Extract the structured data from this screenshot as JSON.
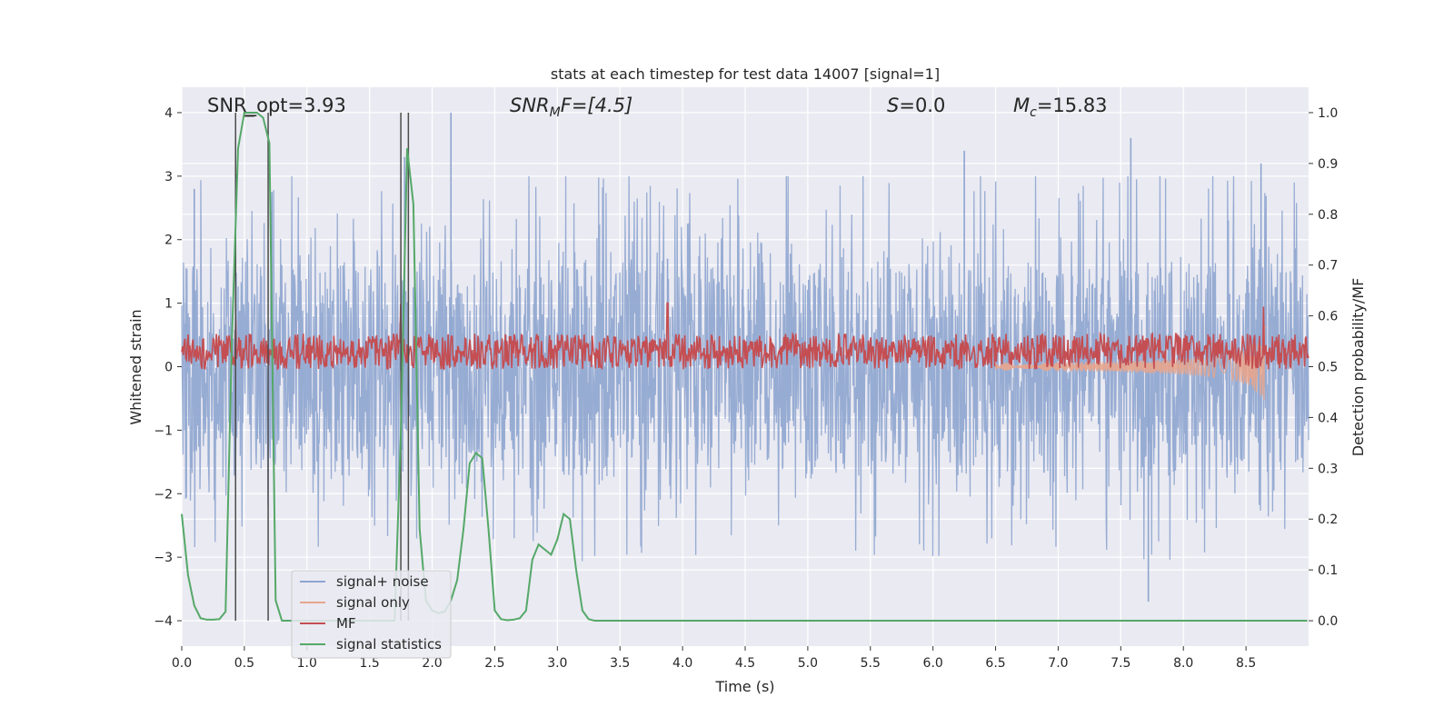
{
  "chart_data": {
    "type": "line",
    "title": "stats at each timestep for test data 14007 [signal=1]",
    "xlabel": "Time (s)",
    "ylabel_left": "Whitened strain",
    "ylabel_right": "Detection probability/MF",
    "xlim": [
      0.0,
      9.0
    ],
    "ylim_left": [
      -4.4,
      4.4
    ],
    "ylim_right": [
      -0.05,
      1.05
    ],
    "x_ticks": [
      "0.0",
      "0.5",
      "1.0",
      "1.5",
      "2.0",
      "2.5",
      "3.0",
      "3.5",
      "4.0",
      "4.5",
      "5.0",
      "5.5",
      "6.0",
      "6.5",
      "7.0",
      "7.5",
      "8.0",
      "8.5"
    ],
    "x_tick_values": [
      0.0,
      0.5,
      1.0,
      1.5,
      2.0,
      2.5,
      3.0,
      3.5,
      4.0,
      4.5,
      5.0,
      5.5,
      6.0,
      6.5,
      7.0,
      7.5,
      8.0,
      8.5
    ],
    "y_ticks_left": [
      "−4",
      "−3",
      "−2",
      "−1",
      "0",
      "1",
      "2",
      "3",
      "4"
    ],
    "y_tick_values_left": [
      -4,
      -3,
      -2,
      -1,
      0,
      1,
      2,
      3,
      4
    ],
    "y_ticks_right": [
      "0.0",
      "0.1",
      "0.2",
      "0.3",
      "0.4",
      "0.5",
      "0.6",
      "0.7",
      "0.8",
      "0.9",
      "1.0"
    ],
    "y_tick_values_right": [
      0.0,
      0.1,
      0.2,
      0.3,
      0.4,
      0.5,
      0.6,
      0.7,
      0.8,
      0.9,
      1.0
    ],
    "grid": true,
    "legend_position": "lower-left",
    "annotations": {
      "snr_opt": "SNR_opt=3.93",
      "snr_mf_sym": "SNR",
      "snr_mf_sub": "M",
      "snr_mf_rest": "F=[4.5]",
      "s_sym": "S",
      "s_rest": "=0.0",
      "mc_sym": "M",
      "mc_sub": "c",
      "mc_rest": "=15.83"
    },
    "series": [
      {
        "name": "signal+ noise",
        "color": "#8ea5cf",
        "axis": "left",
        "description_kind": "noise",
        "amplitude_typical": 1.6,
        "amplitude_max": 4.0,
        "peak_times": [
          0.1,
          0.72,
          1.78,
          2.15,
          3.88,
          6.25,
          7.58,
          7.72,
          8.62
        ],
        "peak_values": [
          2.8,
          2.75,
          3.3,
          4.0,
          1.7,
          3.4,
          3.6,
          -3.7,
          3.2
        ]
      },
      {
        "name": "signal only",
        "color": "#e8a58c",
        "axis": "left",
        "chirp": {
          "t_start": 6.5,
          "t_merge": 8.66,
          "peak_amplitude": 0.72
        }
      },
      {
        "name": "MF",
        "color": "#c44e52",
        "axis": "right",
        "baseline": 0.53,
        "band": 0.035,
        "spikes": [
          {
            "t": 0.43,
            "v": 0.595
          },
          {
            "t": 1.75,
            "v": 0.623
          },
          {
            "t": 3.88,
            "v": 0.625
          },
          {
            "t": 8.64,
            "v": 0.618
          }
        ]
      },
      {
        "name": "signal statistics",
        "color": "#55a868",
        "axis": "right",
        "x": [
          0.0,
          0.05,
          0.1,
          0.15,
          0.2,
          0.25,
          0.3,
          0.35,
          0.4,
          0.45,
          0.5,
          0.55,
          0.6,
          0.65,
          0.7,
          0.75,
          0.8,
          0.85,
          0.9,
          0.95,
          1.0,
          1.1,
          1.2,
          1.3,
          1.4,
          1.5,
          1.6,
          1.65,
          1.7,
          1.75,
          1.8,
          1.85,
          1.9,
          1.95,
          2.0,
          2.05,
          2.1,
          2.15,
          2.2,
          2.25,
          2.3,
          2.35,
          2.4,
          2.45,
          2.5,
          2.55,
          2.6,
          2.65,
          2.7,
          2.75,
          2.8,
          2.85,
          2.9,
          2.95,
          3.0,
          3.05,
          3.1,
          3.15,
          3.2,
          3.25,
          3.3,
          3.35,
          3.4,
          3.45,
          3.5,
          4.0,
          5.0,
          6.0,
          6.5,
          7.0,
          7.05,
          7.1,
          7.5,
          8.0,
          8.5,
          8.99
        ],
        "y": [
          0.21,
          0.09,
          0.03,
          0.005,
          0.002,
          0.002,
          0.003,
          0.018,
          0.55,
          0.93,
          1.0,
          1.0,
          1.0,
          0.99,
          0.94,
          0.04,
          0.0,
          0.0,
          0.0,
          0.0,
          0.0,
          0.0,
          0.0,
          0.0,
          0.0,
          0.0,
          0.0,
          0.0,
          0.0,
          0.37,
          0.93,
          0.82,
          0.18,
          0.04,
          0.02,
          0.015,
          0.018,
          0.04,
          0.08,
          0.18,
          0.31,
          0.33,
          0.32,
          0.18,
          0.02,
          0.003,
          0.001,
          0.002,
          0.005,
          0.02,
          0.12,
          0.15,
          0.14,
          0.13,
          0.16,
          0.21,
          0.2,
          0.1,
          0.02,
          0.003,
          0.0,
          0.0,
          0.0,
          0.0,
          0.0,
          0.0,
          0.0,
          0.0,
          0.0,
          0.0,
          0.0,
          0.0,
          0.0,
          0.0,
          0.0,
          0.0
        ]
      }
    ],
    "vertical_markers": [
      0.43,
      0.69,
      1.75,
      1.81
    ],
    "legend": [
      "signal+ noise",
      "signal only",
      "MF",
      "signal statistics"
    ]
  }
}
